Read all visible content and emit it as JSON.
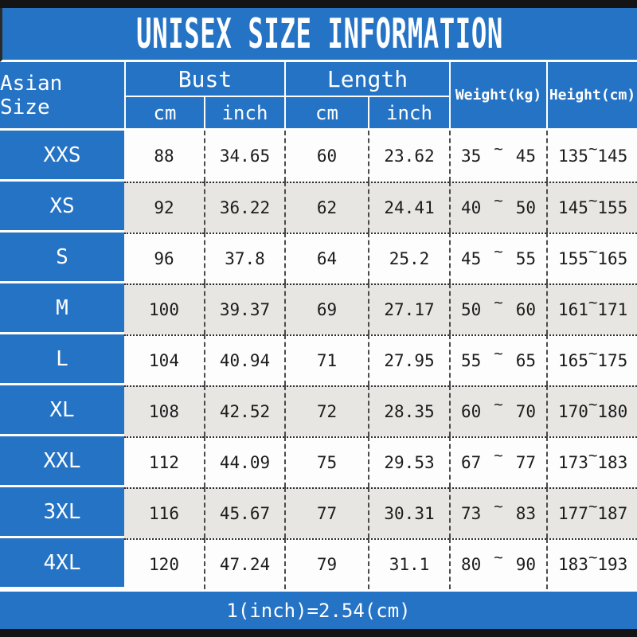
{
  "title": "UNISEX SIZE INFORMATION",
  "footer": {
    "conversion_note": "1(inch)=2.54(cm)"
  },
  "colors": {
    "accent_blue": "#2573c5",
    "bar_black": "#141414",
    "row_alt_gray": "#e8e6e3",
    "row_white": "#fdfdfd",
    "text_dark": "#1c1c1c",
    "header_text": "#ffffff"
  },
  "table": {
    "headers": {
      "size": "Asian Size",
      "bust": "Bust",
      "length": "Length",
      "weight": "Weight(kg)",
      "height": "Height(cm)",
      "cm": "cm",
      "inch": "inch",
      "tilde": "~"
    },
    "rows": [
      {
        "size": "XXS",
        "bust_cm": "88",
        "bust_inch": "34.65",
        "length_cm": "60",
        "length_inch": "23.62",
        "weight_min": "35",
        "weight_max": "45",
        "height_min": "135",
        "height_max": "145"
      },
      {
        "size": "XS",
        "bust_cm": "92",
        "bust_inch": "36.22",
        "length_cm": "62",
        "length_inch": "24.41",
        "weight_min": "40",
        "weight_max": "50",
        "height_min": "145",
        "height_max": "155"
      },
      {
        "size": "S",
        "bust_cm": "96",
        "bust_inch": "37.8",
        "length_cm": "64",
        "length_inch": "25.2",
        "weight_min": "45",
        "weight_max": "55",
        "height_min": "155",
        "height_max": "165"
      },
      {
        "size": "M",
        "bust_cm": "100",
        "bust_inch": "39.37",
        "length_cm": "69",
        "length_inch": "27.17",
        "weight_min": "50",
        "weight_max": "60",
        "height_min": "161",
        "height_max": "171"
      },
      {
        "size": "L",
        "bust_cm": "104",
        "bust_inch": "40.94",
        "length_cm": "71",
        "length_inch": "27.95",
        "weight_min": "55",
        "weight_max": "65",
        "height_min": "165",
        "height_max": "175"
      },
      {
        "size": "XL",
        "bust_cm": "108",
        "bust_inch": "42.52",
        "length_cm": "72",
        "length_inch": "28.35",
        "weight_min": "60",
        "weight_max": "70",
        "height_min": "170",
        "height_max": "180"
      },
      {
        "size": "XXL",
        "bust_cm": "112",
        "bust_inch": "44.09",
        "length_cm": "75",
        "length_inch": "29.53",
        "weight_min": "67",
        "weight_max": "77",
        "height_min": "173",
        "height_max": "183"
      },
      {
        "size": "3XL",
        "bust_cm": "116",
        "bust_inch": "45.67",
        "length_cm": "77",
        "length_inch": "30.31",
        "weight_min": "73",
        "weight_max": "83",
        "height_min": "177",
        "height_max": "187"
      },
      {
        "size": "4XL",
        "bust_cm": "120",
        "bust_inch": "47.24",
        "length_cm": "79",
        "length_inch": "31.1",
        "weight_min": "80",
        "weight_max": "90",
        "height_min": "183",
        "height_max": "193"
      }
    ]
  }
}
